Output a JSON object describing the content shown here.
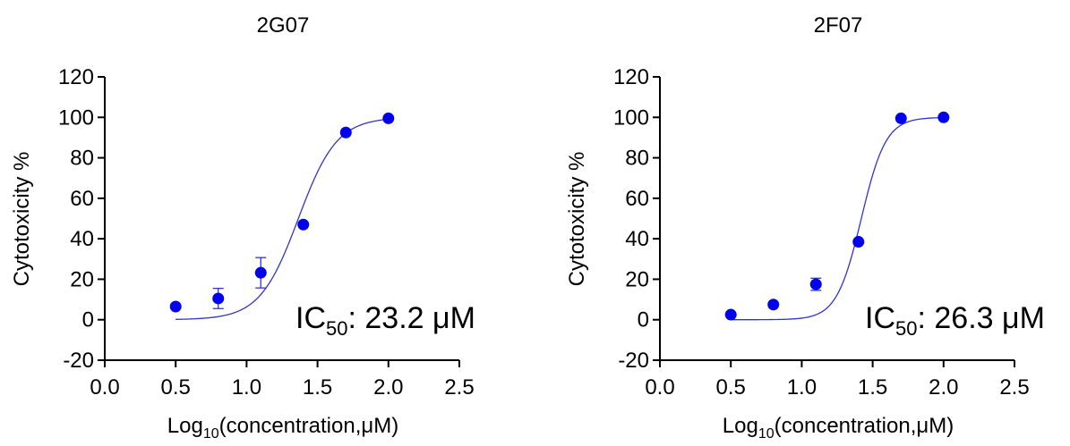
{
  "colors": {
    "marker": "#0000ee",
    "fit_line": "#3333cc",
    "axis": "#000000"
  },
  "chart_data": [
    {
      "type": "scatter",
      "title": "2G07",
      "xlabel": "Log10(concentration,μM)",
      "xlabel_parts": {
        "base": "Log",
        "sub": "10",
        "rest": "(concentration,μM)"
      },
      "ylabel": "Cytotoxicity %",
      "xlim": [
        0.0,
        2.5
      ],
      "ylim": [
        -20,
        120
      ],
      "xticks": [
        "0.0",
        "0.5",
        "1.0",
        "1.5",
        "2.0",
        "2.5"
      ],
      "yticks": [
        "-20",
        "0",
        "20",
        "40",
        "60",
        "80",
        "100",
        "120"
      ],
      "grid": false,
      "series": [
        {
          "x": [
            0.5,
            0.8,
            1.1,
            1.4,
            1.7,
            2.0
          ],
          "y": [
            6.5,
            10.5,
            23.2,
            47.0,
            92.5,
            99.5
          ],
          "error": [
            0,
            5.0,
            7.5,
            0,
            0,
            0
          ]
        }
      ],
      "fit": {
        "ic50_log": 1.365,
        "hill": 3.2,
        "bottom": 0,
        "top": 100
      },
      "annotation": {
        "label": "IC",
        "sub": "50",
        "value": ": 23.2 μM"
      }
    },
    {
      "type": "scatter",
      "title": "2F07",
      "xlabel": "Log10(concentration,μM)",
      "xlabel_parts": {
        "base": "Log",
        "sub": "10",
        "rest": "(concentration,μM)"
      },
      "ylabel": "Cytotoxicity %",
      "xlim": [
        0.0,
        2.5
      ],
      "ylim": [
        -20,
        120
      ],
      "xticks": [
        "0.0",
        "0.5",
        "1.0",
        "1.5",
        "2.0",
        "2.5"
      ],
      "yticks": [
        "-20",
        "0",
        "20",
        "40",
        "60",
        "80",
        "100",
        "120"
      ],
      "grid": false,
      "series": [
        {
          "x": [
            0.5,
            0.8,
            1.1,
            1.4,
            1.7,
            2.0
          ],
          "y": [
            2.5,
            7.5,
            17.5,
            38.5,
            99.5,
            100.0
          ],
          "error": [
            0,
            0,
            3.0,
            0,
            0,
            0
          ]
        }
      ],
      "fit": {
        "ic50_log": 1.42,
        "hill": 5.0,
        "bottom": 0,
        "top": 100
      },
      "annotation": {
        "label": "IC",
        "sub": "50",
        "value": ": 26.3 μM"
      }
    }
  ]
}
